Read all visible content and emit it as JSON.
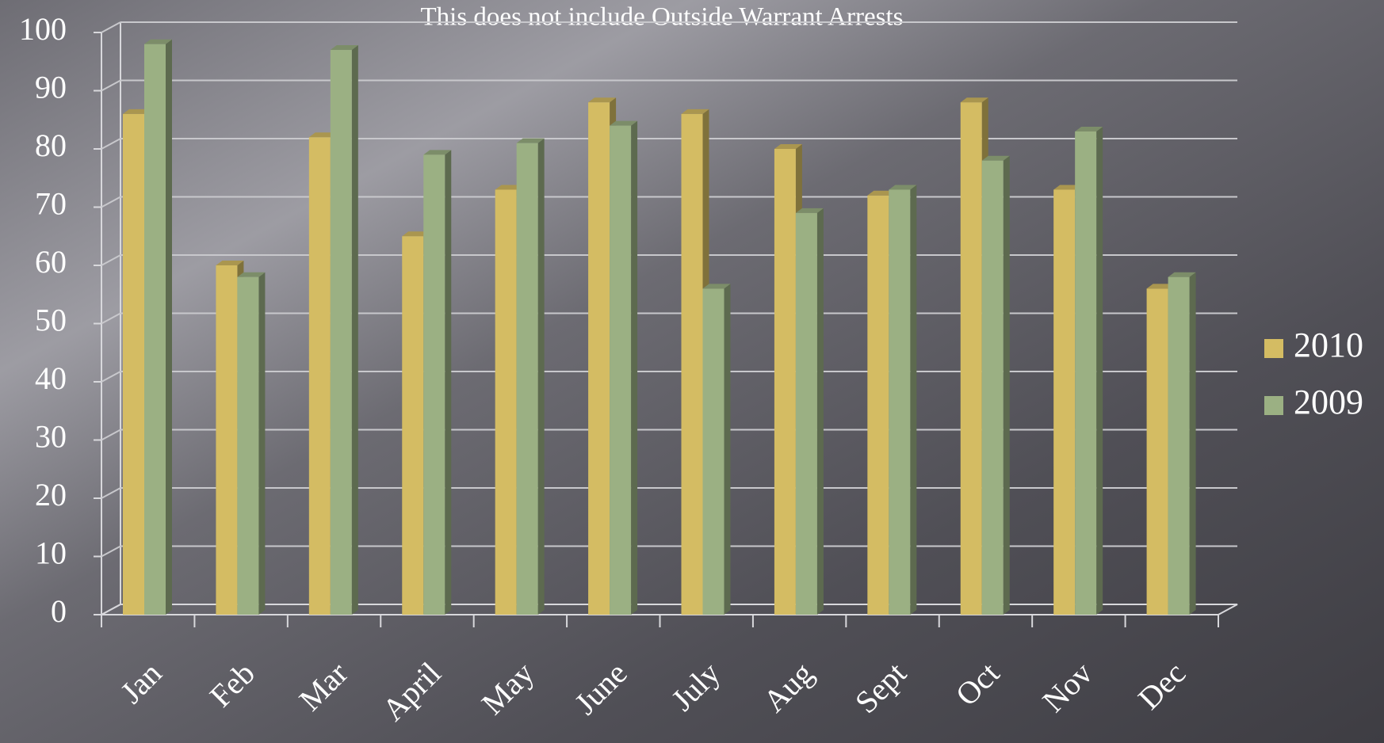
{
  "chart_data": {
    "type": "bar",
    "title": "This does not include Outside Warrant Arrests",
    "categories": [
      "Jan",
      "Feb",
      "Mar",
      "April",
      "May",
      "June",
      "July",
      "Aug",
      "Sept",
      "Oct",
      "Nov",
      "Dec"
    ],
    "series": [
      {
        "name": "2010",
        "color": "#d4bc63",
        "values": [
          86,
          60,
          82,
          65,
          73,
          88,
          86,
          80,
          72,
          88,
          73,
          56
        ]
      },
      {
        "name": "2009",
        "color": "#9bb083",
        "values": [
          98,
          58,
          97,
          79,
          81,
          84,
          56,
          69,
          73,
          78,
          83,
          58
        ]
      }
    ],
    "ylim": [
      0,
      100
    ],
    "yticks": [
      0,
      10,
      20,
      30,
      40,
      50,
      60,
      70,
      80,
      90,
      100
    ],
    "grid": true,
    "legend": "right"
  }
}
